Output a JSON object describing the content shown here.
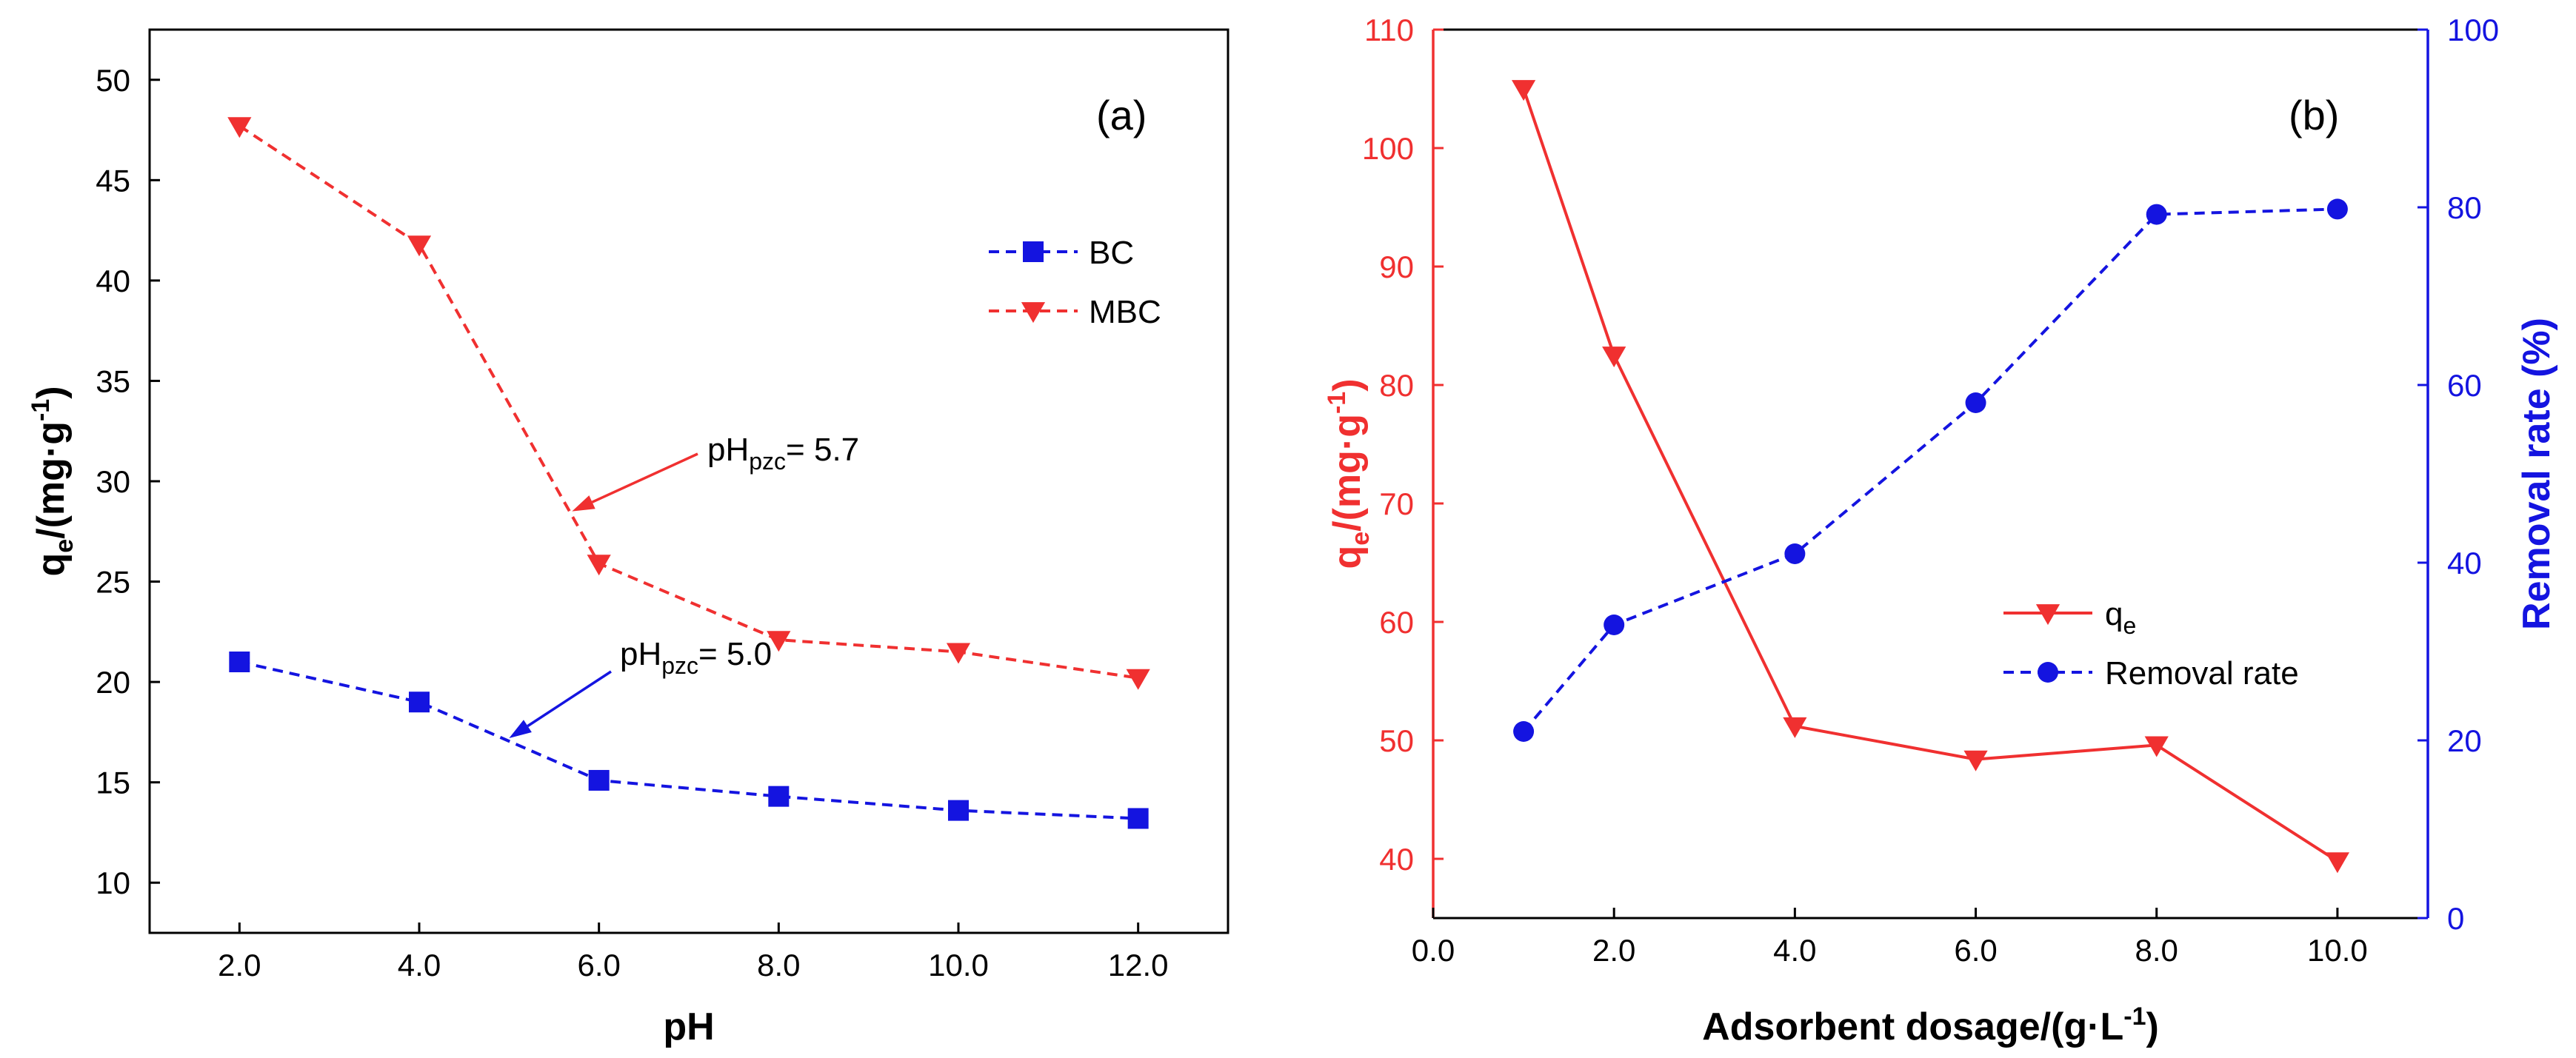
{
  "colors": {
    "red": "#f03030",
    "blue": "#1414e0",
    "black": "#000000"
  },
  "chart_data": [
    {
      "type": "line",
      "panel_label": "(a)",
      "xlabel": "pH",
      "ylabel_main": "q",
      "ylabel_sub": "e",
      "ylabel_rest": "/(mg·g",
      "ylabel_sup": "-1",
      "ylabel_close": ")",
      "xlim": [
        1.0,
        13.0
      ],
      "ylim": [
        7.5,
        52.5
      ],
      "xticks": [
        2,
        4,
        6,
        8,
        10,
        12
      ],
      "xtick_labels": [
        "2.0",
        "4.0",
        "6.0",
        "8.0",
        "10.0",
        "12.0"
      ],
      "yticks": [
        10,
        15,
        20,
        25,
        30,
        35,
        40,
        45,
        50
      ],
      "ytick_labels": [
        "10",
        "15",
        "20",
        "25",
        "30",
        "35",
        "40",
        "45",
        "50"
      ],
      "series": [
        {
          "name": "BC",
          "color": "#1414e0",
          "marker": "square",
          "dashed": true,
          "x": [
            2,
            4,
            6,
            8,
            10,
            12
          ],
          "y": [
            21.0,
            19.0,
            15.1,
            14.3,
            13.6,
            13.2
          ]
        },
        {
          "name": "MBC",
          "color": "#f03030",
          "marker": "triangle-down",
          "dashed": true,
          "x": [
            2,
            4,
            6,
            8,
            10,
            12
          ],
          "y": [
            47.7,
            41.8,
            25.9,
            22.1,
            21.5,
            20.2
          ]
        }
      ],
      "legend": [
        {
          "label": "BC",
          "color": "#1414e0",
          "marker": "square"
        },
        {
          "label": "MBC",
          "color": "#f03030",
          "marker": "triangle-down"
        }
      ],
      "annotations": [
        {
          "main": "pH",
          "sub": "pzc",
          "rest": "= 5.7",
          "color": "#f03030",
          "x": 5.7,
          "y": 28.5
        },
        {
          "main": "pH",
          "sub": "pzc",
          "rest": "= 5.0",
          "color": "#1414e0",
          "x": 5.0,
          "y": 17.2
        }
      ]
    },
    {
      "type": "line",
      "panel_label": "(b)",
      "xlabel_main": "Adsorbent dosage/(g·L",
      "xlabel_sup": "-1",
      "xlabel_close": ")",
      "ylabel_main": "q",
      "ylabel_sub": "e",
      "ylabel_rest": "/(mg·g",
      "ylabel_sup": "-1",
      "ylabel_close": ")",
      "y2label": "Removal rate (%)",
      "xlim": [
        0.0,
        11.0
      ],
      "ylim": [
        35,
        110
      ],
      "y2lim": [
        0,
        100
      ],
      "xticks": [
        0,
        2,
        4,
        6,
        8,
        10
      ],
      "xtick_labels": [
        "0.0",
        "2.0",
        "4.0",
        "6.0",
        "8.0",
        "10.0"
      ],
      "yticks": [
        40,
        50,
        60,
        70,
        80,
        90,
        100,
        110
      ],
      "ytick_labels": [
        "40",
        "50",
        "60",
        "70",
        "80",
        "90",
        "100",
        "110"
      ],
      "y2ticks": [
        0,
        20,
        40,
        60,
        80,
        100
      ],
      "y2tick_labels": [
        "0",
        "20",
        "40",
        "60",
        "80",
        "100"
      ],
      "series": [
        {
          "name": "qe",
          "color": "#f03030",
          "marker": "triangle-down",
          "dashed": false,
          "axis": "left",
          "x": [
            1,
            2,
            4,
            6,
            8,
            10
          ],
          "y": [
            105.0,
            82.5,
            51.2,
            48.4,
            49.6,
            39.8
          ]
        },
        {
          "name": "Removal rate",
          "color": "#1414e0",
          "marker": "circle",
          "dashed": true,
          "axis": "right",
          "x": [
            1,
            2,
            4,
            6,
            8,
            10
          ],
          "y": [
            21.0,
            33.0,
            41.0,
            58.0,
            79.2,
            79.8
          ]
        }
      ],
      "legend": [
        {
          "main": "q",
          "sub": "e",
          "color": "#f03030",
          "marker": "triangle-down"
        },
        {
          "main": "Removal rate",
          "sub": "",
          "color": "#1414e0",
          "marker": "circle"
        }
      ]
    }
  ]
}
